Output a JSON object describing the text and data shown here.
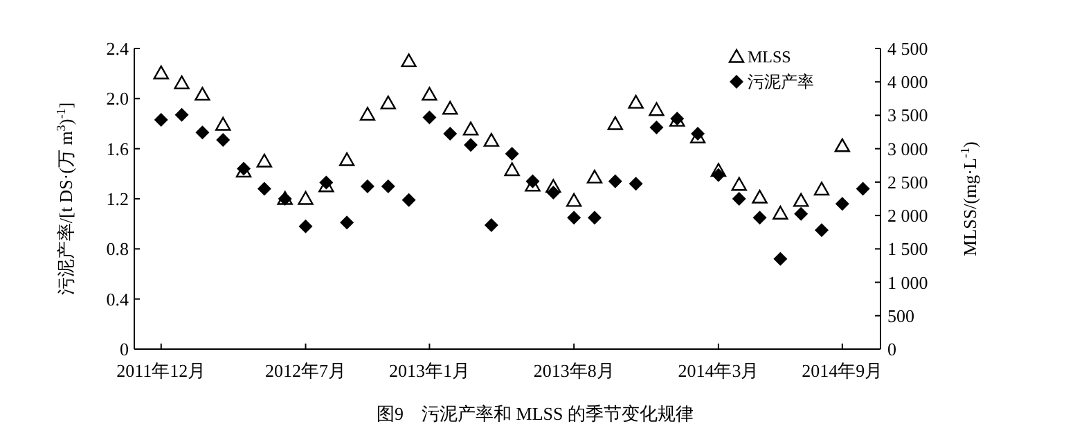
{
  "chart_data": {
    "type": "scatter",
    "title": "图9　污泥产率和 MLSS 的季节变化规律",
    "ylabel": "污泥产率/[t DS·(万 m$^{3}$)$^{-1}$]",
    "y2label": "MLSS/(mg·L$^{-1}$)",
    "categories": [
      "2011年12月",
      null,
      null,
      null,
      null,
      null,
      null,
      "2012年7月",
      null,
      null,
      null,
      null,
      null,
      "2013年1月",
      null,
      null,
      null,
      null,
      null,
      null,
      "2013年8月",
      null,
      null,
      null,
      null,
      null,
      null,
      "2014年3月",
      null,
      null,
      null,
      null,
      null,
      "2014年9月",
      null
    ],
    "ylim": [
      0,
      2.4
    ],
    "yticks": [
      0,
      0.4,
      0.8,
      1.2,
      1.6,
      {
        "value": 2,
        "label": "2.0"
      },
      2.4
    ],
    "y2lim": [
      0,
      4500
    ],
    "y2ticks": [
      0,
      500,
      {
        "value": 1000,
        "label": "1 000"
      },
      {
        "value": 1500,
        "label": "1 500"
      },
      {
        "value": 2000,
        "label": "2 000"
      },
      {
        "value": 2500,
        "label": "2 500"
      },
      {
        "value": 3000,
        "label": "3 000"
      },
      {
        "value": 3500,
        "label": "3 500"
      },
      {
        "value": 4000,
        "label": "4 000"
      },
      {
        "value": 4500,
        "label": "4 500"
      }
    ],
    "legend": "top right",
    "grid": false,
    "series": [
      {
        "name": "MLSS",
        "axis": "y2",
        "marker": "triangle",
        "color": "#000000",
        "values": [
          4130,
          3980,
          3810,
          3360,
          2660,
          2810,
          2250,
          2250,
          2440,
          2830,
          3510,
          3680,
          4310,
          3810,
          3600,
          3290,
          3120,
          2680,
          2450,
          2430,
          2220,
          2570,
          3370,
          3690,
          3580,
          3420,
          3170,
          2670,
          2460,
          2270,
          2030,
          2220,
          2390,
          3040,
          null
        ]
      },
      {
        "name": "污泥产率",
        "axis": "y",
        "marker": "diamond",
        "color": "#000000",
        "values": [
          1.83,
          1.87,
          1.73,
          1.67,
          1.44,
          1.28,
          1.2,
          0.98,
          1.33,
          1.01,
          1.3,
          1.3,
          1.19,
          1.85,
          1.72,
          1.63,
          0.99,
          1.56,
          1.34,
          1.25,
          1.05,
          1.05,
          1.34,
          1.32,
          1.77,
          1.84,
          1.72,
          1.39,
          1.2,
          1.05,
          0.72,
          1.08,
          0.95,
          1.16,
          1.28
        ]
      }
    ]
  }
}
